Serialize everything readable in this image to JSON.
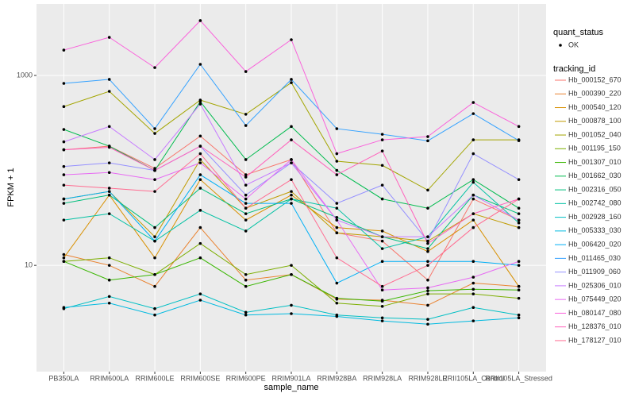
{
  "chart_data": {
    "type": "line",
    "x_label": "sample_name",
    "y_label": "FPKM + 1",
    "log_scale_y": true,
    "grid": true,
    "ylim": [
      0.76,
      5660
    ],
    "yticks": [
      10,
      1000
    ],
    "point_color": "#000000",
    "legend_position": "right",
    "status_legend": {
      "title": "quant_status",
      "entries": [
        "OK"
      ]
    },
    "legend_title": "tracking_id",
    "categories": [
      "PB350LA",
      "RRIM600LA",
      "RRIM600LE",
      "RRIM600SE",
      "RRIM600PE",
      "RRIM901LA",
      "RRIM928BA",
      "RRIM928LA",
      "RRIM928LE",
      "RRII105LA_Control",
      "RRII105LA_Stressed"
    ],
    "series": [
      {
        "name": "Hb_000152_670",
        "color": "#F8766D",
        "values": [
          165,
          180,
          105,
          230,
          90,
          130,
          22,
          18,
          7,
          50,
          30
        ]
      },
      {
        "name": "Hb_000390_220",
        "color": "#EA8331",
        "values": [
          13,
          10,
          6,
          25,
          7,
          8,
          4.4,
          4.3,
          3.8,
          6.5,
          6
        ]
      },
      {
        "name": "Hb_000540_120",
        "color": "#D89000",
        "values": [
          12,
          55,
          12,
          80,
          30,
          55,
          25,
          23,
          14,
          30,
          6
        ]
      },
      {
        "name": "Hb_000878_100",
        "color": "#C09B00",
        "values": [
          50,
          60,
          20,
          130,
          40,
          60,
          22,
          20,
          18,
          35,
          25
        ]
      },
      {
        "name": "Hb_001052_040",
        "color": "#A3A500",
        "values": [
          470,
          680,
          245,
          550,
          390,
          840,
          125,
          113,
          62,
          210,
          210
        ]
      },
      {
        "name": "Hb_001195_150",
        "color": "#7CAE00",
        "values": [
          11,
          12,
          8,
          17,
          8,
          10,
          4,
          3.7,
          5,
          5,
          4.5
        ]
      },
      {
        "name": "Hb_001307_010",
        "color": "#39B600",
        "values": [
          11,
          7,
          8,
          12,
          6,
          8,
          4.5,
          4.2,
          5.4,
          5.6,
          5.5
        ]
      },
      {
        "name": "Hb_001662_030",
        "color": "#00BB4E",
        "values": [
          270,
          180,
          100,
          530,
          130,
          290,
          100,
          50,
          40,
          80,
          40
        ]
      },
      {
        "name": "Hb_002316_050",
        "color": "#00BF7D",
        "values": [
          45,
          55,
          25,
          65,
          35,
          50,
          32,
          20,
          15,
          55,
          35
        ]
      },
      {
        "name": "Hb_002742_080",
        "color": "#00C1A3",
        "values": [
          30,
          35,
          18,
          38,
          23,
          50,
          40,
          15,
          20,
          75,
          28
        ]
      },
      {
        "name": "Hb_002928_160",
        "color": "#00BFC4",
        "values": [
          3.5,
          4.7,
          3.5,
          5.0,
          3.2,
          3.8,
          3.0,
          2.8,
          2.7,
          3.6,
          3.0
        ]
      },
      {
        "name": "Hb_005333_030",
        "color": "#00BAE0",
        "values": [
          3.6,
          4.0,
          3.0,
          4.3,
          3.0,
          3.1,
          2.9,
          2.6,
          2.4,
          2.6,
          2.8
        ]
      },
      {
        "name": "Hb_006420_020",
        "color": "#00B0F6",
        "values": [
          50,
          60,
          18,
          90,
          45,
          45,
          6.5,
          11,
          11,
          11,
          10
        ]
      },
      {
        "name": "Hb_011465_030",
        "color": "#35A2FF",
        "values": [
          825,
          909,
          275,
          1310,
          297,
          909,
          275,
          240,
          205,
          396,
          206
        ]
      },
      {
        "name": "Hb_011909_060",
        "color": "#9590FF",
        "values": [
          110,
          120,
          100,
          180,
          55,
          120,
          45,
          70,
          18,
          150,
          80
        ]
      },
      {
        "name": "Hb_025306_010",
        "color": "#C77CFF",
        "values": [
          200,
          290,
          130,
          500,
          70,
          120,
          30,
          20,
          20,
          55,
          30
        ]
      },
      {
        "name": "Hb_075449_020",
        "color": "#E76BF3",
        "values": [
          90,
          95,
          80,
          120,
          50,
          130,
          30,
          5.5,
          5.8,
          7.5,
          11
        ]
      },
      {
        "name": "Hb_080147_080",
        "color": "#FA62DB",
        "values": [
          1850,
          2520,
          1210,
          3780,
          1100,
          2380,
          150,
          210,
          227,
          519,
          290
        ]
      },
      {
        "name": "Hb_128376_010",
        "color": "#FF62BC",
        "values": [
          165,
          175,
          100,
          180,
          85,
          210,
          90,
          160,
          17,
          35,
          50
        ]
      },
      {
        "name": "Hb_178127_010",
        "color": "#FF6C91",
        "values": [
          70,
          65,
          60,
          150,
          40,
          80,
          12,
          6,
          10,
          25,
          50
        ]
      }
    ]
  }
}
